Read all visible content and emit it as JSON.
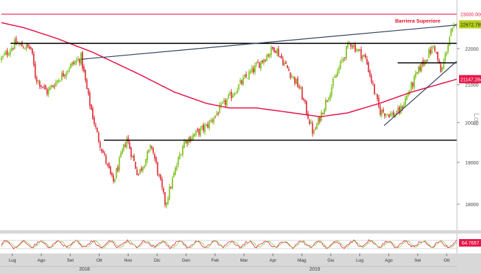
{
  "toolbar": {
    "icons": [
      "plus-icon",
      "pencil-icon",
      "pencil-line-icon",
      "magnifier-icon"
    ],
    "badge": "0"
  },
  "colors": {
    "up": "#7dc21e",
    "down": "#e0303a",
    "ma": "#e8184a",
    "trendline": "#2b3f5c",
    "support": "#000000",
    "axis_bg": "#d8d8d8",
    "price_badge": "#b8d21c"
  },
  "chart_data": {
    "type": "candlestick",
    "scale": "log",
    "ylim": [
      17500,
      23300
    ],
    "y_ticks": [
      "22000",
      "21000",
      "20000",
      "19000",
      "18000"
    ],
    "y_tick_values": [
      22000,
      21000,
      20000,
      19000,
      18000
    ],
    "axis_title": "Log",
    "x_months": [
      "Lug",
      "Ago",
      "Set",
      "Ott",
      "Nov",
      "Dic",
      "Gen",
      "Feb",
      "Mar",
      "Apr",
      "Mag",
      "Giu",
      "Lug",
      "Ago",
      "Set",
      "Ott"
    ],
    "years": [
      "2018",
      "2019"
    ],
    "price_labels": {
      "top": "23000.0000",
      "last": "22672.7891",
      "ma": "21147.2845"
    },
    "annotation": "Barriera Superiore",
    "anchors": [
      {
        "t": 0,
        "p": 21700
      },
      {
        "t": 0.03,
        "p": 22150
      },
      {
        "t": 0.065,
        "p": 22000
      },
      {
        "t": 0.075,
        "p": 21200
      },
      {
        "t": 0.1,
        "p": 20800
      },
      {
        "t": 0.15,
        "p": 21500
      },
      {
        "t": 0.175,
        "p": 21750
      },
      {
        "t": 0.19,
        "p": 20700
      },
      {
        "t": 0.21,
        "p": 19700
      },
      {
        "t": 0.245,
        "p": 18500
      },
      {
        "t": 0.275,
        "p": 19600
      },
      {
        "t": 0.3,
        "p": 18700
      },
      {
        "t": 0.33,
        "p": 19400
      },
      {
        "t": 0.36,
        "p": 18000
      },
      {
        "t": 0.4,
        "p": 19500
      },
      {
        "t": 0.45,
        "p": 19900
      },
      {
        "t": 0.49,
        "p": 20500
      },
      {
        "t": 0.53,
        "p": 21100
      },
      {
        "t": 0.6,
        "p": 22050
      },
      {
        "t": 0.625,
        "p": 21500
      },
      {
        "t": 0.655,
        "p": 20900
      },
      {
        "t": 0.685,
        "p": 19700
      },
      {
        "t": 0.72,
        "p": 20800
      },
      {
        "t": 0.765,
        "p": 22200
      },
      {
        "t": 0.8,
        "p": 21700
      },
      {
        "t": 0.83,
        "p": 20300
      },
      {
        "t": 0.86,
        "p": 20200
      },
      {
        "t": 0.875,
        "p": 20300
      },
      {
        "t": 0.92,
        "p": 21500
      },
      {
        "t": 0.95,
        "p": 22100
      },
      {
        "t": 0.965,
        "p": 21300
      },
      {
        "t": 0.985,
        "p": 22400
      },
      {
        "t": 1,
        "p": 22700
      }
    ],
    "ma_series": [
      {
        "t": 0,
        "p": 22750
      },
      {
        "t": 0.05,
        "p": 22600
      },
      {
        "t": 0.12,
        "p": 22300
      },
      {
        "t": 0.2,
        "p": 21900
      },
      {
        "t": 0.3,
        "p": 21300
      },
      {
        "t": 0.38,
        "p": 20800
      },
      {
        "t": 0.45,
        "p": 20500
      },
      {
        "t": 0.5,
        "p": 20380
      },
      {
        "t": 0.56,
        "p": 20380
      },
      {
        "t": 0.64,
        "p": 20250
      },
      {
        "t": 0.7,
        "p": 20150
      },
      {
        "t": 0.76,
        "p": 20250
      },
      {
        "t": 0.83,
        "p": 20500
      },
      {
        "t": 0.9,
        "p": 20800
      },
      {
        "t": 1,
        "p": 21150
      }
    ],
    "horizontal_lines": [
      {
        "name": "barrier-line",
        "price": 23000,
        "t0": 0,
        "t1": 1,
        "color": "#e8184a"
      },
      {
        "name": "resistance-line",
        "price": 22150,
        "t0": 0.02,
        "t1": 1,
        "color": "#000000"
      },
      {
        "name": "support-line-high",
        "price": 21600,
        "t0": 0.87,
        "t1": 1,
        "color": "#000000"
      },
      {
        "name": "support-line-low",
        "price": 19550,
        "t0": 0.225,
        "t1": 1,
        "color": "#000000"
      }
    ],
    "trend_lines": [
      {
        "name": "upper-trendline",
        "t0": 0.175,
        "p0": 21700,
        "t1": 1,
        "p1": 22680,
        "color": "#2b3f5c"
      },
      {
        "name": "rising-trendline",
        "t0": 0.84,
        "p0": 19920,
        "t1": 1,
        "p1": 21650,
        "color": "#2b3f5c"
      }
    ],
    "oscillator": {
      "label": "64.7657",
      "ylim": [
        0,
        100
      ]
    }
  }
}
